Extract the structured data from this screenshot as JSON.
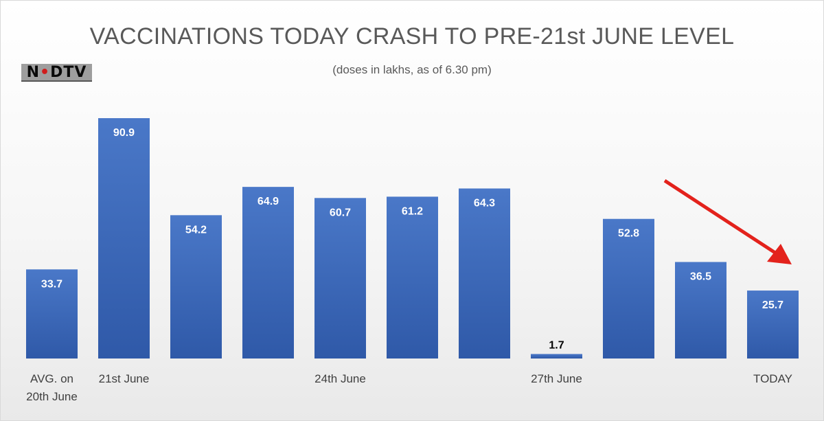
{
  "chart_data": {
    "type": "bar",
    "title": "VACCINATIONS TODAY CRASH TO PRE-21st JUNE LEVEL",
    "subtitle": "(doses in lakhs, as of 6.30 pm)",
    "categories": [
      "AVG. on 20th June",
      "21st June",
      "",
      "",
      "24th June",
      "",
      "",
      "27th June",
      "",
      "",
      "TODAY"
    ],
    "category_lines": [
      [
        "AVG. on",
        "20th June"
      ],
      [
        "21st June"
      ],
      [],
      [],
      [
        "24th June"
      ],
      [],
      [],
      [
        "27th June"
      ],
      [],
      [],
      [
        "TODAY"
      ]
    ],
    "values": [
      33.7,
      90.9,
      54.2,
      64.9,
      60.7,
      61.2,
      64.3,
      1.7,
      52.8,
      36.5,
      25.7
    ],
    "labels": [
      "33.7",
      "90.9",
      "54.2",
      "64.9",
      "60.7",
      "61.2",
      "64.3",
      "1.7",
      "52.8",
      "36.5",
      "25.7"
    ],
    "ylim": [
      0,
      100
    ],
    "xlabel": "",
    "ylabel": "",
    "grid": false,
    "annotations": [
      {
        "type": "arrow",
        "pointing_to": "TODAY",
        "color": "#e3221c"
      }
    ],
    "colors": {
      "bar_top": "#4a78c8",
      "bar_bottom": "#2f59a8",
      "label_inside": "#ffffff",
      "label_outside": "#000000",
      "arrow": "#e3221c"
    }
  },
  "logo": {
    "text_pre": "N",
    "text_dot": "•",
    "text_post": "DTV"
  }
}
